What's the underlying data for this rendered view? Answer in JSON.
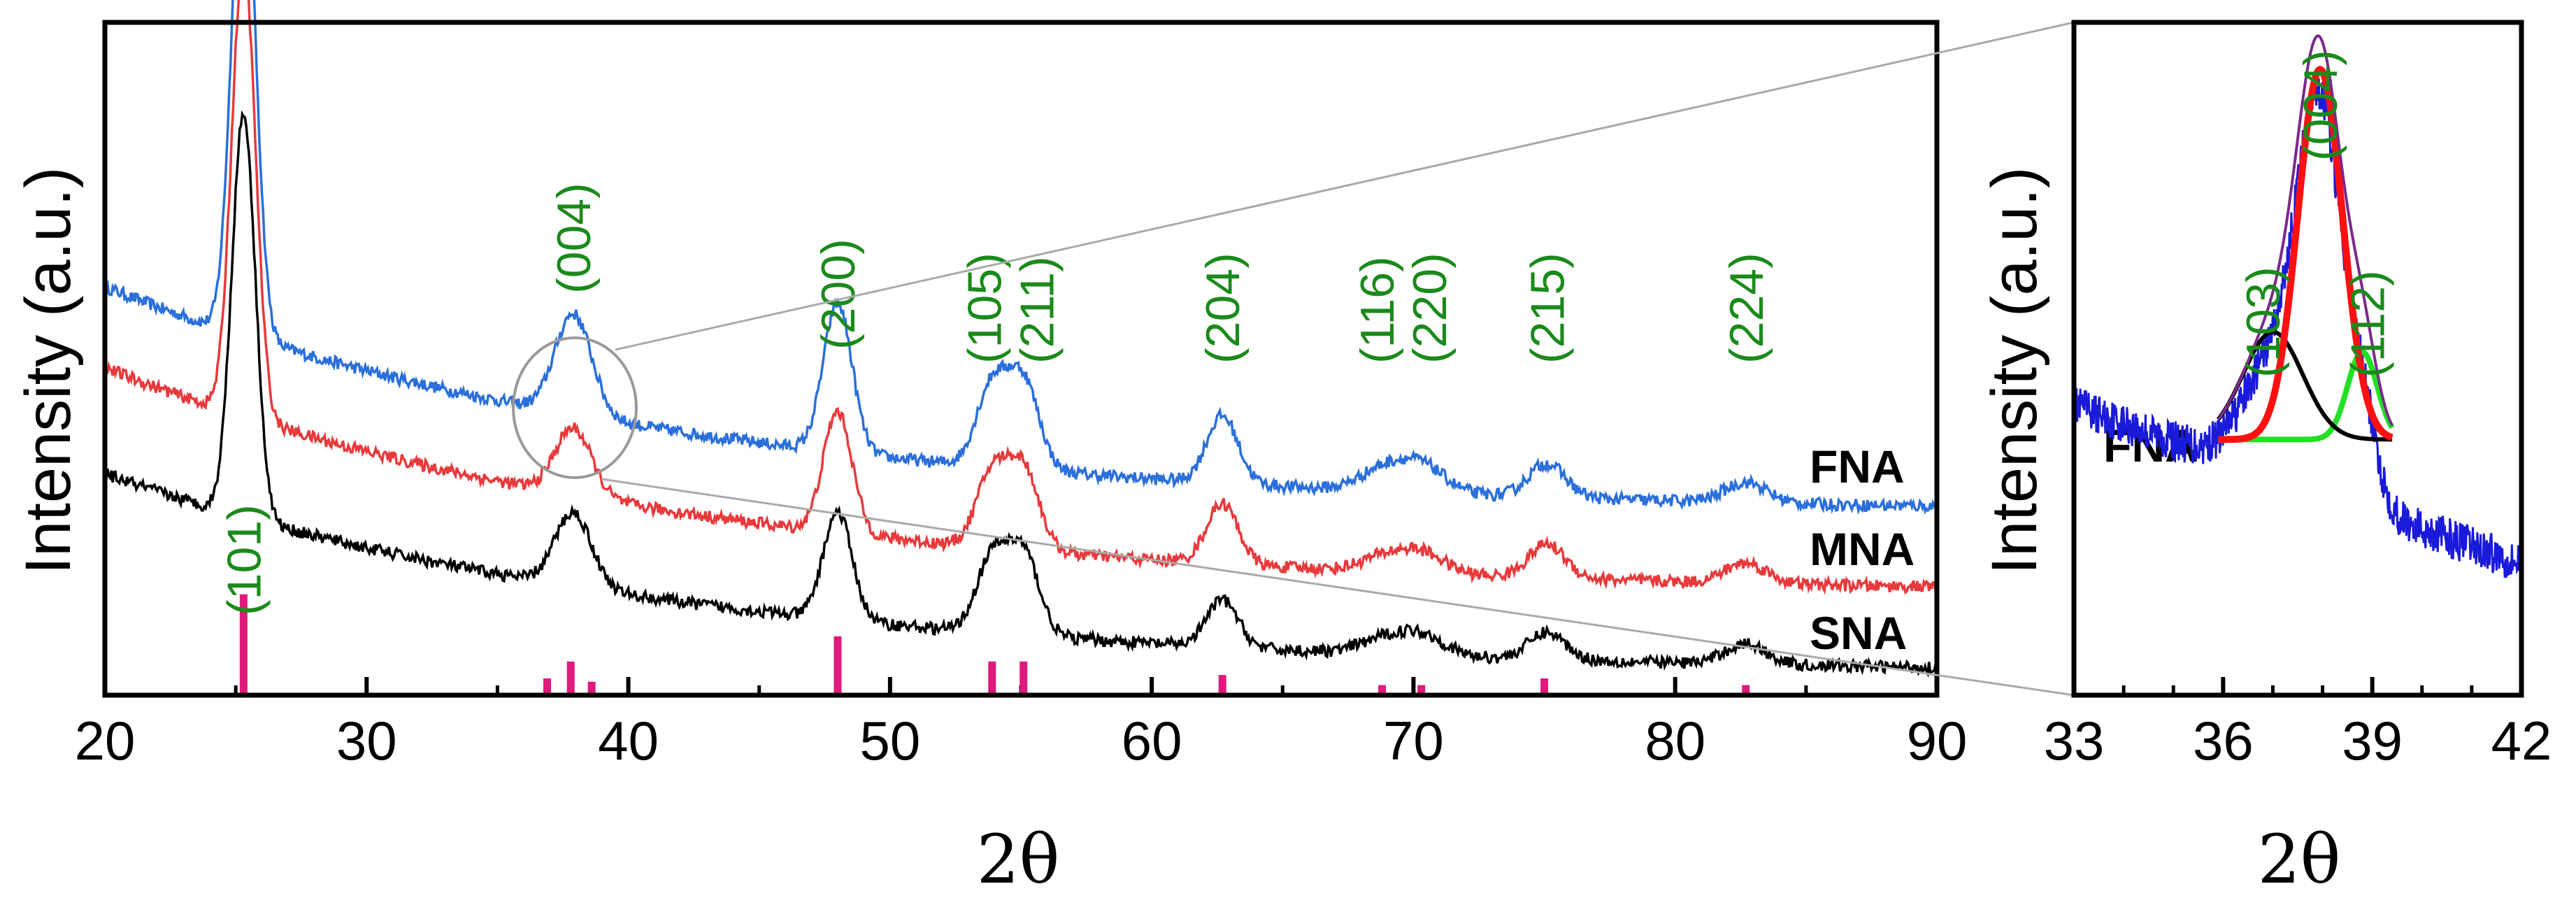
{
  "chart_data": [
    {
      "type": "line",
      "title": "",
      "xlabel": "2θ",
      "ylabel": "Intensity (a.u.)",
      "xlim": [
        20,
        90
      ],
      "xticks": [
        "20",
        "30",
        "40",
        "50",
        "60",
        "70",
        "80",
        "90"
      ],
      "series": [
        {
          "name": "FNA",
          "color": "#2a6fdb",
          "baseline": {
            "start": 0.62,
            "mid": 0.36,
            "end": 0.28
          },
          "peaks": [
            [
              25.3,
              0.75,
              0.45
            ],
            [
              37.9,
              0.15,
              0.7
            ],
            [
              48.0,
              0.22,
              0.55
            ],
            [
              53.9,
              0.12,
              0.6
            ],
            [
              55.1,
              0.13,
              0.6
            ],
            [
              62.7,
              0.1,
              0.6
            ],
            [
              68.8,
              0.03,
              0.9
            ],
            [
              70.3,
              0.04,
              0.9
            ],
            [
              75.1,
              0.05,
              0.7
            ],
            [
              82.7,
              0.03,
              0.8
            ]
          ]
        },
        {
          "name": "MNA",
          "color": "#e8393b",
          "baseline": {
            "start": 0.5,
            "mid": 0.24,
            "end": 0.16
          },
          "peaks": [
            [
              25.3,
              0.68,
              0.45
            ],
            [
              37.9,
              0.1,
              0.7
            ],
            [
              48.0,
              0.18,
              0.55
            ],
            [
              53.9,
              0.11,
              0.6
            ],
            [
              55.1,
              0.12,
              0.6
            ],
            [
              62.7,
              0.09,
              0.6
            ],
            [
              68.8,
              0.02,
              0.9
            ],
            [
              70.3,
              0.03,
              0.9
            ],
            [
              75.1,
              0.05,
              0.7
            ],
            [
              82.7,
              0.03,
              0.8
            ]
          ]
        },
        {
          "name": "SNA",
          "color": "#000000",
          "baseline": {
            "start": 0.34,
            "mid": 0.12,
            "end": 0.04
          },
          "peaks": [
            [
              25.3,
              0.6,
              0.45
            ],
            [
              37.9,
              0.11,
              0.7
            ],
            [
              48.0,
              0.16,
              0.55
            ],
            [
              53.9,
              0.11,
              0.6
            ],
            [
              55.1,
              0.12,
              0.6
            ],
            [
              62.7,
              0.07,
              0.6
            ],
            [
              68.8,
              0.02,
              0.9
            ],
            [
              70.3,
              0.03,
              0.9
            ],
            [
              75.1,
              0.04,
              0.7
            ],
            [
              82.7,
              0.03,
              0.8
            ]
          ]
        }
      ],
      "reference_sticks": {
        "color": "#e0197d",
        "positions": [
          25.3,
          36.9,
          37.8,
          38.6,
          48.0,
          53.9,
          55.1,
          62.7,
          68.8,
          70.3,
          75.0,
          82.7
        ],
        "heights": [
          0.6,
          0.1,
          0.2,
          0.08,
          0.35,
          0.2,
          0.2,
          0.12,
          0.06,
          0.06,
          0.1,
          0.06
        ]
      },
      "peak_labels": [
        {
          "text": "(101)",
          "x": 25.3
        },
        {
          "text": "(004)",
          "x": 37.9
        },
        {
          "text": "(200)",
          "x": 48.0
        },
        {
          "text": "(105)",
          "x": 53.6
        },
        {
          "text": "(211)",
          "x": 55.6
        },
        {
          "text": "(204)",
          "x": 62.7
        },
        {
          "text": "(116)",
          "x": 68.6
        },
        {
          "text": "(220)",
          "x": 70.6
        },
        {
          "text": "(215)",
          "x": 75.1
        },
        {
          "text": "(224)",
          "x": 82.7
        }
      ],
      "series_labels": [
        "FNA",
        "MNA",
        "SNA"
      ]
    },
    {
      "type": "line",
      "title": "",
      "xlabel": "2θ",
      "ylabel": "Intensity (a.u.)",
      "xlim": [
        33,
        42
      ],
      "xticks": [
        "33",
        "36",
        "39",
        "42"
      ],
      "sample_label": "FNA",
      "series": [
        {
          "name": "FNA data",
          "color": "#1a1adb",
          "baseline": 0.42,
          "peak": [
            37.95,
            0.58,
            0.55
          ]
        },
        {
          "name": "(004) fit",
          "color": "#ff1010",
          "center": 37.95,
          "amplitude": 0.55,
          "sigma": 0.45
        },
        {
          "name": "(103) fit",
          "color": "#000000",
          "center": 37.0,
          "amplitude": 0.16,
          "sigma": 0.6
        },
        {
          "name": "(112) fit",
          "color": "#22e022",
          "center": 38.8,
          "amplitude": 0.13,
          "sigma": 0.3
        },
        {
          "name": "envelope",
          "color": "#7a2a8a"
        }
      ],
      "peak_labels": [
        {
          "text": "(103)",
          "x": 36.8
        },
        {
          "text": "(004)",
          "x": 37.95
        },
        {
          "text": "(112)",
          "x": 38.9
        }
      ]
    }
  ]
}
